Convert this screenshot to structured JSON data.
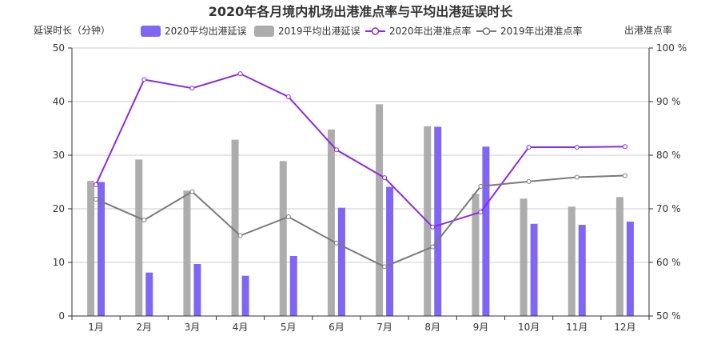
{
  "chart_data": {
    "type": "bar",
    "title": "2020年各月境内机场出港准点率与平均出港延误时长",
    "ylabel_left": "延误时长（分钟）",
    "ylabel_right": "出港准点率",
    "categories": [
      "1月",
      "2月",
      "3月",
      "4月",
      "5月",
      "6月",
      "7月",
      "8月",
      "9月",
      "10月",
      "11月",
      "12月"
    ],
    "y_left": {
      "min": 0,
      "max": 50,
      "ticks": [
        0,
        10,
        20,
        30,
        40,
        50
      ]
    },
    "y_right": {
      "min": 50,
      "max": 100,
      "ticks": [
        50,
        60,
        70,
        80,
        90,
        100
      ],
      "tick_labels": [
        "50 %",
        "60 %",
        "70 %",
        "80 %",
        "90 %",
        "100 %"
      ]
    },
    "grid": true,
    "legend_position": "top",
    "series": [
      {
        "name": "2020平均出港延误",
        "type": "bar",
        "axis": "left",
        "color": "#8066f2",
        "values": [
          25.0,
          8.1,
          9.7,
          7.5,
          11.2,
          20.2,
          24.1,
          35.3,
          31.6,
          17.2,
          17.0,
          17.6
        ]
      },
      {
        "name": "2019平均出港延误",
        "type": "bar",
        "axis": "left",
        "color": "#adadad",
        "values": [
          25.2,
          29.2,
          23.4,
          32.9,
          28.9,
          34.8,
          39.5,
          35.4,
          22.8,
          21.9,
          20.4,
          22.2
        ]
      },
      {
        "name": "2020年出港准点率",
        "type": "line",
        "axis": "right",
        "color": "#8a2be2",
        "values": [
          74.5,
          94.1,
          92.5,
          95.2,
          90.9,
          81.0,
          75.8,
          66.6,
          69.4,
          81.5,
          81.5,
          81.6
        ]
      },
      {
        "name": "2019年出港准点率",
        "type": "line",
        "axis": "right",
        "color": "#7a7a7a",
        "values": [
          71.8,
          67.9,
          73.2,
          65.0,
          68.5,
          63.6,
          59.2,
          62.9,
          74.2,
          75.1,
          75.9,
          76.2
        ]
      }
    ]
  }
}
